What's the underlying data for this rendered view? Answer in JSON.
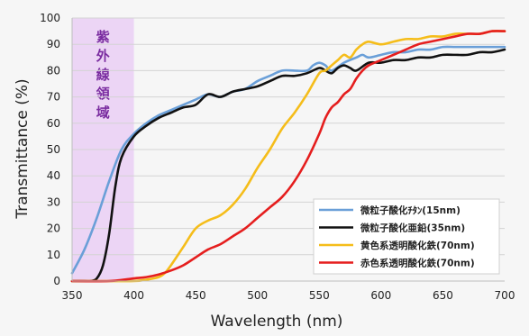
{
  "chart_data": {
    "type": "line",
    "xlabel": "Wavelength (nm)",
    "ylabel": "Transmittance (%)",
    "xlim": [
      350,
      700
    ],
    "ylim": [
      0,
      100
    ],
    "xticks": [
      350,
      400,
      450,
      500,
      550,
      600,
      650,
      700
    ],
    "yticks": [
      0,
      10,
      20,
      30,
      40,
      50,
      60,
      70,
      80,
      90,
      100
    ],
    "grid": "horizontal",
    "legend_position": "bottom-right",
    "uv_band": {
      "x_start": 350,
      "x_end": 400,
      "chars": [
        "紫",
        "外",
        "線",
        "領",
        "域"
      ],
      "color": "#ecd5f5"
    },
    "series": [
      {
        "name": "微粒子酸化ﾁﾀﾝ(15nm)",
        "color": "#6a9fd8",
        "x": [
          350,
          360,
          370,
          380,
          390,
          400,
          410,
          420,
          430,
          440,
          450,
          460,
          470,
          480,
          490,
          500,
          510,
          520,
          530,
          540,
          545,
          550,
          555,
          560,
          570,
          580,
          585,
          590,
          600,
          610,
          620,
          630,
          640,
          650,
          660,
          670,
          680,
          690,
          700
        ],
        "y": [
          3,
          12,
          24,
          38,
          50,
          56,
          60,
          63,
          65,
          67,
          69,
          71,
          70,
          72,
          73,
          76,
          78,
          80,
          80,
          80,
          82,
          83,
          82,
          80,
          83,
          85,
          86,
          85,
          86,
          87,
          87,
          88,
          88,
          89,
          89,
          89,
          89,
          89,
          89
        ]
      },
      {
        "name": "微粒子酸化亜鉛(35nm)",
        "color": "#111111",
        "x": [
          350,
          360,
          365,
          370,
          375,
          380,
          385,
          390,
          400,
          410,
          420,
          430,
          440,
          450,
          460,
          470,
          480,
          490,
          500,
          510,
          520,
          530,
          540,
          550,
          555,
          560,
          565,
          570,
          575,
          580,
          590,
          600,
          610,
          620,
          630,
          640,
          650,
          660,
          670,
          680,
          690,
          700
        ],
        "y": [
          0,
          0,
          0,
          1,
          6,
          18,
          36,
          47,
          55,
          59,
          62,
          64,
          66,
          67,
          71,
          70,
          72,
          73,
          74,
          76,
          78,
          78,
          79,
          81,
          80,
          79,
          81,
          82,
          81,
          80,
          83,
          83,
          84,
          84,
          85,
          85,
          86,
          86,
          86,
          87,
          87,
          88
        ]
      },
      {
        "name": "黄色系透明酸化鉄(70nm)",
        "color": "#f5bd1a",
        "x": [
          350,
          380,
          400,
          410,
          420,
          425,
          430,
          440,
          450,
          460,
          470,
          480,
          490,
          500,
          510,
          520,
          530,
          540,
          550,
          555,
          560,
          565,
          570,
          575,
          580,
          585,
          590,
          600,
          610,
          620,
          630,
          640,
          650,
          660,
          670,
          680,
          690,
          700
        ],
        "y": [
          0,
          0,
          0,
          0.5,
          1.5,
          3,
          6,
          13,
          20,
          23,
          25,
          29,
          35,
          43,
          50,
          58,
          64,
          71,
          79,
          80,
          82,
          84,
          86,
          85,
          88,
          90,
          91,
          90,
          91,
          92,
          92,
          93,
          93,
          94,
          94,
          94,
          95,
          95
        ]
      },
      {
        "name": "赤色系透明酸化鉄(70nm)",
        "color": "#e51e1e",
        "x": [
          350,
          380,
          400,
          410,
          420,
          430,
          440,
          450,
          460,
          470,
          480,
          490,
          500,
          510,
          520,
          530,
          540,
          550,
          555,
          560,
          565,
          570,
          575,
          580,
          585,
          590,
          600,
          610,
          620,
          630,
          640,
          650,
          660,
          670,
          680,
          690,
          700
        ],
        "y": [
          0,
          0,
          1,
          1.5,
          2.5,
          4,
          6,
          9,
          12,
          14,
          17,
          20,
          24,
          28,
          32,
          38,
          46,
          56,
          62,
          66,
          68,
          71,
          73,
          77,
          80,
          82,
          84,
          86,
          88,
          90,
          91,
          92,
          93,
          94,
          94,
          95,
          95
        ]
      }
    ]
  }
}
